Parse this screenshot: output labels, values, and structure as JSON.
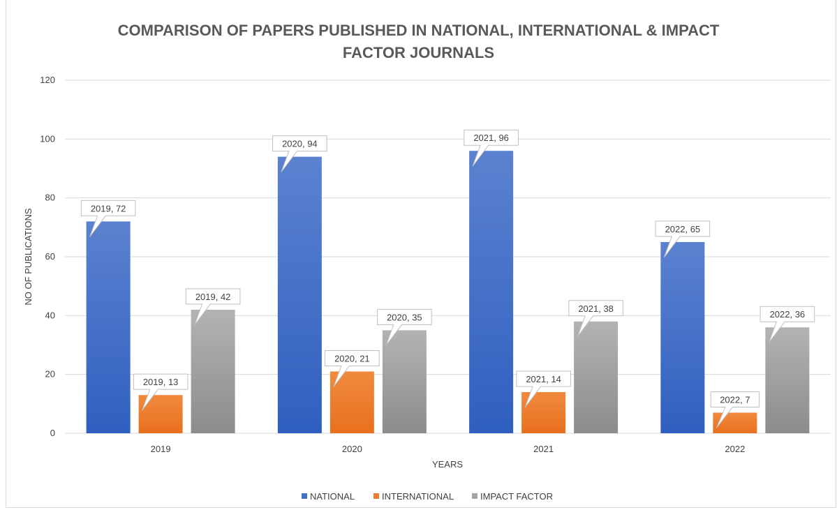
{
  "chart_data": {
    "type": "bar",
    "title_lines": [
      "COMPARISON OF PAPERS PUBLISHED IN NATIONAL, INTERNATIONAL & IMPACT",
      "FACTOR JOURNALS"
    ],
    "categories": [
      "2019",
      "2020",
      "2021",
      "2022"
    ],
    "series": [
      {
        "name": "NATIONAL",
        "values": [
          72,
          94,
          96,
          65
        ],
        "color": "#4472c4"
      },
      {
        "name": "INTERNATIONAL",
        "values": [
          13,
          21,
          14,
          7
        ],
        "color": "#ed7d31"
      },
      {
        "name": "IMPACT FACTOR",
        "values": [
          42,
          35,
          38,
          36
        ],
        "color": "#a5a5a5"
      }
    ],
    "data_labels": [
      [
        "2019, 72",
        "2020, 94",
        "2021, 96",
        "2022, 65"
      ],
      [
        "2019, 13",
        "2020, 21",
        "2021, 14",
        "2022, 7"
      ],
      [
        "2019, 42",
        "2020, 35",
        "2021, 38",
        "2022, 36"
      ]
    ],
    "xlabel": "YEARS",
    "ylabel": "NO OF PUBLICATIONS",
    "ylim": [
      0,
      120
    ],
    "yticks": [
      "0",
      "20",
      "40",
      "60",
      "80",
      "100",
      "120"
    ],
    "grid": true,
    "legend": "bottom"
  }
}
